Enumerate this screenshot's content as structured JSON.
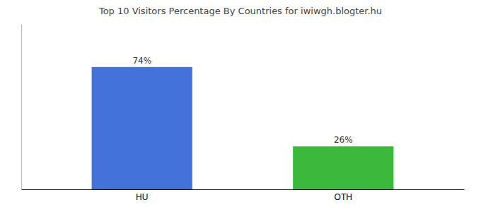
{
  "chart_data": {
    "type": "bar",
    "title": "Top 10 Visitors Percentage By Countries for iwiwgh.blogter.hu",
    "categories": [
      "HU",
      "OTH"
    ],
    "values": [
      74,
      26
    ],
    "value_labels": [
      "74%",
      "26%"
    ],
    "colors": [
      "#4472db",
      "#3cb83c"
    ],
    "ylim": [
      0,
      100
    ],
    "grid": false,
    "data_labels": true,
    "tick_labels": "x"
  }
}
